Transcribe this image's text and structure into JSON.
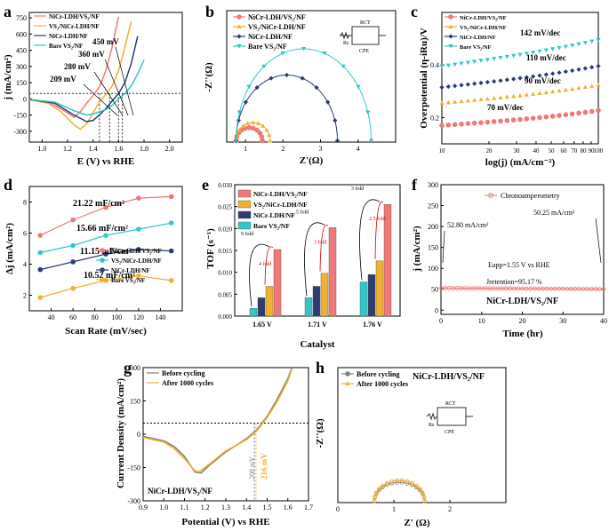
{
  "colors": {
    "red": "#f07878",
    "orange": "#f0b030",
    "navy": "#2c3e70",
    "cyan": "#34c6c6",
    "gray": "#7f7f7f"
  },
  "chart_data": [
    {
      "id": "a",
      "type": "line",
      "panel_label": "a",
      "xlabel": "E (V) vs RHE",
      "ylabel": "j (mA/cm²)",
      "xlim": [
        0.9,
        2.1
      ],
      "ylim": [
        -400,
        800
      ],
      "xticks": [
        "1.0",
        "1.2",
        "1.4",
        "1.6",
        "1.8",
        "2.0"
      ],
      "yticks": [
        "-300",
        "-150",
        "0",
        "150",
        "300",
        "450",
        "600",
        "750"
      ],
      "reference_line_y": 50,
      "series": [
        {
          "name": "NiCr-LDH/VS₂/NF",
          "color": "red",
          "x": [
            0.9,
            1.0,
            1.1,
            1.2,
            1.25,
            1.3,
            1.35,
            1.4,
            1.45,
            1.5,
            1.55,
            1.6
          ],
          "y": [
            -10,
            -20,
            -60,
            -130,
            -170,
            -120,
            -40,
            30,
            110,
            260,
            480,
            760
          ]
        },
        {
          "name": "VS₂/NiCr-LDH/NF",
          "color": "orange",
          "x": [
            0.9,
            1.05,
            1.15,
            1.25,
            1.3,
            1.35,
            1.4,
            1.45,
            1.5,
            1.55,
            1.6,
            1.65,
            1.7
          ],
          "y": [
            -10,
            -40,
            -120,
            -240,
            -280,
            -230,
            -130,
            -30,
            40,
            120,
            260,
            480,
            720
          ]
        },
        {
          "name": "NiCr-LDH/NF",
          "color": "navy",
          "x": [
            0.9,
            1.1,
            1.25,
            1.35,
            1.4,
            1.45,
            1.5,
            1.55,
            1.6,
            1.65,
            1.7,
            1.75
          ],
          "y": [
            -5,
            -40,
            -150,
            -210,
            -200,
            -150,
            -90,
            -20,
            50,
            150,
            330,
            580
          ]
        },
        {
          "name": "Bare VS₂/NF",
          "color": "cyan",
          "x": [
            0.9,
            1.1,
            1.25,
            1.35,
            1.4,
            1.5,
            1.55,
            1.6,
            1.65,
            1.7,
            1.75,
            1.8
          ],
          "y": [
            -5,
            -30,
            -110,
            -150,
            -140,
            -100,
            -60,
            0,
            50,
            120,
            230,
            360
          ]
        }
      ],
      "annotations": [
        "450 mV",
        "360 mV",
        "280 mV",
        "209 mV"
      ]
    },
    {
      "id": "b",
      "type": "scatter",
      "panel_label": "b",
      "xlabel": "Z'(Ω)",
      "ylabel": "-Z''(Ω)",
      "xlim": [
        0.5,
        5
      ],
      "ylim": [
        0,
        1
      ],
      "xticks": [
        "1",
        "2",
        "3",
        "4"
      ],
      "circuit_labels": {
        "rs": "Rs",
        "rct": "RCT",
        "cpe": "CPE"
      },
      "series": [
        {
          "name": "NiCr-LDH/VS₂/NF",
          "color": "red",
          "center": 1.1,
          "radius": 0.35,
          "height": 0.1
        },
        {
          "name": "VS₂/NiCr-LDH/NF",
          "color": "orange",
          "center": 1.2,
          "radius": 0.45,
          "height": 0.14
        },
        {
          "name": "NiCr-LDH/NF",
          "color": "navy",
          "center": 2.1,
          "radius": 1.35,
          "height": 0.5
        },
        {
          "name": "Bare VS₂/NF",
          "color": "cyan",
          "center": 2.55,
          "radius": 1.8,
          "height": 0.7
        }
      ]
    },
    {
      "id": "c",
      "type": "line",
      "panel_label": "c",
      "xlabel": "log(j) (mA/cm⁻²)",
      "ylabel": "Overpotential (η-iRu)/V",
      "xlim_log": [
        10,
        100
      ],
      "ylim": [
        0.1,
        0.6
      ],
      "xticks": [
        "10",
        "20",
        "30",
        "40",
        "50",
        "60",
        "70",
        "80",
        "90",
        "100"
      ],
      "yticks": [
        "0.2",
        "0.4"
      ],
      "series": [
        {
          "name": "NiCr-LDH/VS₂/NF",
          "color": "red",
          "y_at_10": 0.17,
          "tafel_mV_dec": 70,
          "label": "70 mV/dec"
        },
        {
          "name": "VS₂/NiCr-LDH/NF",
          "color": "orange",
          "y_at_10": 0.255,
          "tafel_mV_dec": 90,
          "label": "90 mV/dec"
        },
        {
          "name": "NiCr-LDH/NF",
          "color": "navy",
          "y_at_10": 0.315,
          "tafel_mV_dec": 110,
          "label": "110 mV/dec"
        },
        {
          "name": "Bare VS₂/NF",
          "color": "cyan",
          "y_at_10": 0.395,
          "tafel_mV_dec": 142,
          "label": "142 mV/dec"
        }
      ]
    },
    {
      "id": "d",
      "type": "line",
      "panel_label": "d",
      "xlabel": "Scan Rate (mV/sec)",
      "ylabel": "Δj (mA/cm²)",
      "xlim": [
        20,
        160
      ],
      "ylim": [
        1,
        9
      ],
      "xticks": [
        "40",
        "60",
        "80",
        "100",
        "120",
        "140"
      ],
      "yticks": [
        "2",
        "4",
        "6",
        "8"
      ],
      "x": [
        30,
        60,
        90,
        120,
        150
      ],
      "series": [
        {
          "name": "NiCr-LDH/VS₂/NF",
          "color": "red",
          "values": [
            5.85,
            6.85,
            7.65,
            8.25,
            8.35
          ],
          "label": "21.22 mF/cm²"
        },
        {
          "name": "VS₂/NiCr-LDH/NF",
          "color": "cyan",
          "values": [
            4.75,
            5.2,
            5.85,
            6.25,
            6.65
          ],
          "label": "15.66 mF/cm²"
        },
        {
          "name": "NiCr-LDH/NF",
          "color": "navy",
          "values": [
            3.65,
            4.15,
            4.65,
            4.95,
            4.85
          ],
          "label": "11.15 mF/cm²"
        },
        {
          "name": "Bare VS₂/NF",
          "color": "orange",
          "values": [
            1.85,
            2.45,
            2.95,
            3.25,
            2.95
          ],
          "label": "10.52 mF/cm²"
        }
      ]
    },
    {
      "id": "e",
      "type": "bar",
      "panel_label": "e",
      "xlabel": "Catalyst",
      "ylabel": "TOF (s⁻¹)",
      "ylim": [
        0,
        0.03
      ],
      "yticks": [
        "0.000",
        "0.005",
        "0.010",
        "0.015",
        "0.020",
        "0.025",
        "0.030"
      ],
      "categories": [
        "1.65 V",
        "1.71 V",
        "1.76 V"
      ],
      "series": [
        {
          "name": "Bare VS₂/NF",
          "color": "cyan",
          "values": [
            0.0018,
            0.0042,
            0.0078
          ]
        },
        {
          "name": "NiCr-LDH/NF",
          "color": "navy",
          "values": [
            0.0042,
            0.0068,
            0.0095
          ]
        },
        {
          "name": "VS₂/NiCr-LDH/NF",
          "color": "orange",
          "values": [
            0.0068,
            0.0098,
            0.0126
          ]
        },
        {
          "name": "NiCr-LDH/VS₂/NF",
          "color": "red",
          "values": [
            0.0152,
            0.0202,
            0.0255
          ]
        }
      ],
      "legend_order": [
        "NiCr-LDH/VS₂/NF",
        "VS₂/NiCr-LDH/NF",
        "NiCr-LDH/NF",
        "Bare VS₂/NF"
      ],
      "fold_labels": [
        [
          "9 fold",
          "4 fold"
        ],
        [
          "5 fold",
          "3 fold"
        ],
        [
          "3 fold",
          "2.5 fold"
        ]
      ]
    },
    {
      "id": "f",
      "type": "line",
      "panel_label": "f",
      "xlabel": "Time (hr)",
      "ylabel": "j (mA/cm²)",
      "xlim": [
        0,
        40
      ],
      "ylim": [
        -10,
        300
      ],
      "xticks": [
        "0",
        "10",
        "20",
        "30",
        "40"
      ],
      "yticks": [
        "0",
        "50",
        "100",
        "150",
        "200",
        "250",
        "300"
      ],
      "series": [
        {
          "name": "Chronoamperometry",
          "color": "red",
          "start": 52.8,
          "end": 50.25
        }
      ],
      "annotations": {
        "start": "52.80 mA/cm²",
        "end": "50.25 mA/cm²",
        "eapp": "Eapp=1.55 V vs RHE",
        "jret": "Jretention=95.17 %",
        "sample": "NiCr-LDH/VS₂/NF"
      }
    },
    {
      "id": "g",
      "type": "line",
      "panel_label": "g",
      "xlabel": "Potential (V) vs RHE",
      "ylabel": "Current Density (mA/cm²)",
      "xlim": [
        0.9,
        1.7
      ],
      "ylim": [
        -300,
        300
      ],
      "xticks": [
        "0.9",
        "1.0",
        "1.1",
        "1.2",
        "1.3",
        "1.4",
        "1.5",
        "1.6",
        "1.7"
      ],
      "yticks": [
        "-300",
        "-150",
        "0",
        "150",
        "300"
      ],
      "reference_line_y": 50,
      "series": [
        {
          "name": "Before cycling",
          "color": "gray",
          "x": [
            0.9,
            1.0,
            1.05,
            1.1,
            1.15,
            1.18,
            1.22,
            1.3,
            1.4,
            1.45,
            1.5,
            1.55,
            1.6,
            1.62
          ],
          "y": [
            -10,
            -30,
            -55,
            -100,
            -170,
            -175,
            -140,
            -80,
            -20,
            20,
            80,
            160,
            250,
            300
          ]
        },
        {
          "name": "After 1000 cycles",
          "color": "orange",
          "x": [
            0.9,
            1.0,
            1.05,
            1.1,
            1.15,
            1.17,
            1.22,
            1.3,
            1.4,
            1.45,
            1.5,
            1.55,
            1.6,
            1.62
          ],
          "y": [
            -15,
            -35,
            -65,
            -110,
            -165,
            -170,
            -135,
            -75,
            -25,
            15,
            75,
            150,
            240,
            295
          ]
        }
      ],
      "annotations": {
        "before": "208 mV",
        "after": "216 mV",
        "sample": "NiCr-LDH/VS₂/NF"
      }
    },
    {
      "id": "h",
      "type": "scatter",
      "panel_label": "h",
      "xlabel": "Z' (Ω)",
      "ylabel": "-Z''(Ω)",
      "xlim": [
        0,
        3
      ],
      "ylim": [
        0,
        1
      ],
      "xticks": [
        "0",
        "1",
        "2"
      ],
      "title": "NiCr-LDH/VS₂/NF",
      "circuit_labels": {
        "rs": "Rs",
        "rct": "RCT",
        "cpe": "CPE"
      },
      "series": [
        {
          "name": "Before cycling",
          "color": "gray",
          "center": 1.1,
          "radius": 0.45,
          "height": 0.14
        },
        {
          "name": "After 1000 cycles",
          "color": "orange",
          "center": 1.1,
          "radius": 0.45,
          "height": 0.155
        }
      ]
    }
  ]
}
